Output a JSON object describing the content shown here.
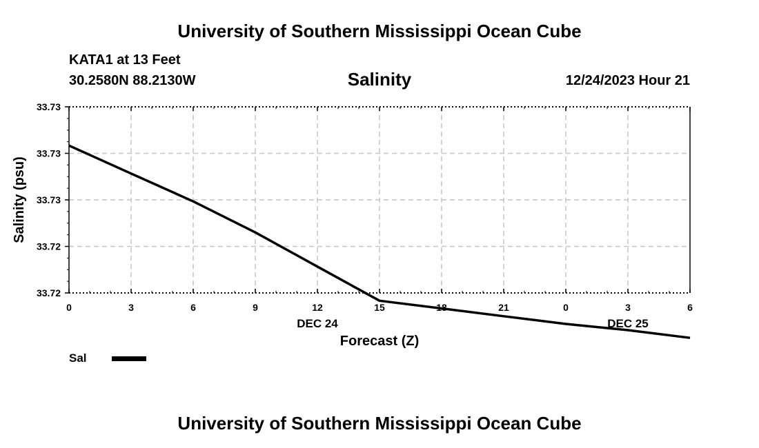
{
  "header": {
    "title": "University of Southern Mississippi Ocean Cube",
    "station": "KATA1 at 13 Feet",
    "coordinates": "30.2580N  88.2130W",
    "variable": "Salinity",
    "datetime": "12/24/2023 Hour 21"
  },
  "footer": {
    "title": "University of Southern Mississippi Ocean Cube"
  },
  "legend": {
    "label": "Sal",
    "color": "#000000"
  },
  "chart_data": {
    "type": "line",
    "title": "Salinity",
    "xlabel": "Forecast (Z)",
    "ylabel": "Salinity (psu)",
    "x_hours": [
      0,
      3,
      6,
      9,
      12,
      15,
      18,
      21,
      24,
      27,
      30
    ],
    "x_tick_labels": [
      "0",
      "3",
      "6",
      "9",
      "12",
      "15",
      "18",
      "21",
      "0",
      "3",
      "6"
    ],
    "date_labels": [
      {
        "hour": 12,
        "label": "DEC 24"
      },
      {
        "hour": 27,
        "label": "DEC 25"
      }
    ],
    "y_tick_labels": [
      "33.73",
      "33.73",
      "33.73",
      "33.72",
      "33.72"
    ],
    "ylim": [
      33.72,
      33.732
    ],
    "grid": true,
    "series": [
      {
        "name": "Sal",
        "x": [
          0,
          3,
          6,
          9,
          12,
          15,
          18,
          21,
          24,
          27,
          30
        ],
        "values": [
          33.7295,
          33.7277,
          33.7259,
          33.7239,
          33.7217,
          33.7195,
          33.719,
          33.7185,
          33.718,
          33.7176,
          33.7171
        ]
      }
    ]
  }
}
